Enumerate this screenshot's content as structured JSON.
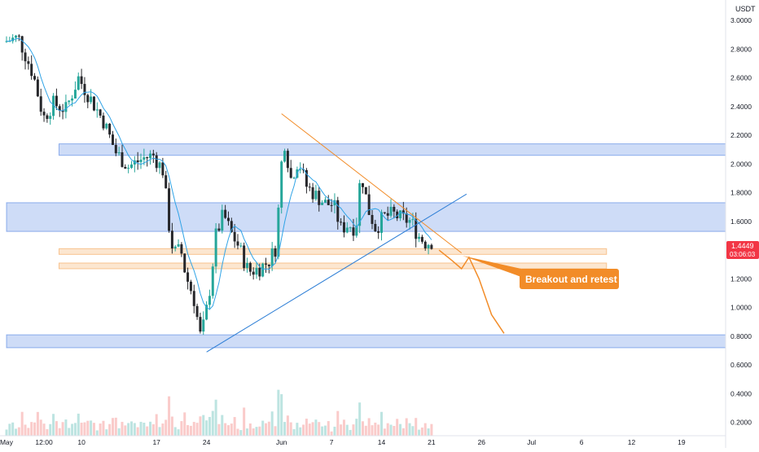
{
  "chart_data": {
    "type": "candlestick",
    "quote_unit": "USDT",
    "last_price": "1.4449",
    "countdown": "03:06:03",
    "y_ticks": [
      "3.0000",
      "2.8000",
      "2.6000",
      "2.4000",
      "2.2000",
      "2.0000",
      "1.8000",
      "1.6000",
      "1.4000",
      "1.2000",
      "1.0000",
      "0.8000",
      "0.6000",
      "0.4000",
      "0.2000"
    ],
    "x_ticks": [
      {
        "label": "May",
        "day": 0
      },
      {
        "label": "12:00",
        "day": 1.5
      },
      {
        "label": "10",
        "day": 3
      },
      {
        "label": "17",
        "day": 6
      },
      {
        "label": "24",
        "day": 8
      },
      {
        "label": "Jun",
        "day": 11
      },
      {
        "label": "7",
        "day": 13
      },
      {
        "label": "14",
        "day": 15
      },
      {
        "label": "21",
        "day": 17
      },
      {
        "label": "26",
        "day": 19
      },
      {
        "label": "Jul",
        "day": 21
      },
      {
        "label": "6",
        "day": 23
      },
      {
        "label": "12",
        "day": 25
      },
      {
        "label": "19",
        "day": 27
      }
    ],
    "price_path": [
      [
        0,
        2.85
      ],
      [
        0.6,
        2.88
      ],
      [
        1.2,
        2.62
      ],
      [
        1.6,
        2.32
      ],
      [
        2.0,
        2.42
      ],
      [
        2.5,
        2.38
      ],
      [
        3.0,
        2.6
      ],
      [
        3.4,
        2.48
      ],
      [
        4.0,
        2.3
      ],
      [
        4.5,
        2.08
      ],
      [
        5.0,
        1.98
      ],
      [
        5.6,
        2.04
      ],
      [
        6.0,
        2.06
      ],
      [
        6.4,
        1.95
      ],
      [
        6.6,
        1.6
      ],
      [
        6.8,
        1.38
      ],
      [
        7.1,
        1.4
      ],
      [
        7.3,
        1.22
      ],
      [
        7.6,
        1.08
      ],
      [
        7.9,
        0.78
      ],
      [
        8.2,
        1.05
      ],
      [
        8.5,
        1.5
      ],
      [
        8.8,
        1.65
      ],
      [
        9.1,
        1.52
      ],
      [
        9.4,
        1.43
      ],
      [
        9.8,
        1.25
      ],
      [
        10.2,
        1.27
      ],
      [
        10.6,
        1.32
      ],
      [
        10.9,
        1.42
      ],
      [
        11.2,
        2.2
      ],
      [
        11.5,
        1.9
      ],
      [
        11.8,
        2.03
      ],
      [
        12.1,
        1.85
      ],
      [
        12.5,
        1.78
      ],
      [
        12.9,
        1.72
      ],
      [
        13.2,
        1.72
      ],
      [
        13.5,
        1.55
      ],
      [
        13.8,
        1.58
      ],
      [
        14.1,
        1.55
      ],
      [
        14.3,
        1.95
      ],
      [
        14.6,
        1.68
      ],
      [
        14.9,
        1.55
      ],
      [
        15.2,
        1.63
      ],
      [
        15.6,
        1.65
      ],
      [
        15.9,
        1.62
      ],
      [
        16.3,
        1.6
      ],
      [
        16.6,
        1.5
      ],
      [
        16.9,
        1.45
      ],
      [
        17.1,
        1.46
      ]
    ],
    "horizontal_zones": [
      {
        "color": "#1e5fd9",
        "low": 2.06,
        "high": 2.14,
        "day_start": 2.1
      },
      {
        "color": "#1e5fd9",
        "low": 1.53,
        "high": 1.73,
        "day_start": 0
      },
      {
        "color": "#1e5fd9",
        "low": 0.72,
        "high": 0.81,
        "day_start": 0
      },
      {
        "color": "#f28c28",
        "low": 1.37,
        "high": 1.41,
        "day_start": 2.1,
        "day_end": 24
      },
      {
        "color": "#f28c28",
        "low": 1.27,
        "high": 1.31,
        "day_start": 2.1,
        "day_end": 24
      }
    ],
    "trendlines": [
      {
        "color": "#f28c28",
        "points": [
          [
            11.0,
            2.35
          ],
          [
            18.2,
            1.38
          ]
        ]
      },
      {
        "color": "#2f7fd6",
        "points": [
          [
            8.0,
            0.69
          ],
          [
            18.4,
            1.79
          ]
        ]
      }
    ],
    "projection": {
      "color": "#f28c28",
      "points": [
        [
          17.3,
          1.4
        ],
        [
          17.8,
          1.33
        ],
        [
          18.2,
          1.27
        ],
        [
          18.5,
          1.35
        ],
        [
          18.9,
          1.2
        ],
        [
          19.4,
          0.95
        ],
        [
          19.9,
          0.82
        ]
      ]
    },
    "annotation": "Breakout and retest",
    "colors": {
      "up": "#26a69a",
      "down": "#26272b",
      "ma": "#2fa3e6",
      "last_price_bg": "#f23645"
    }
  }
}
